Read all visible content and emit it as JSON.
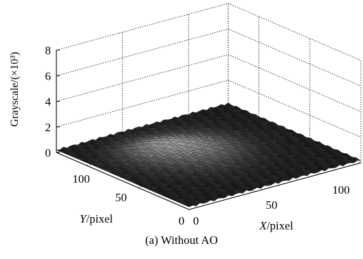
{
  "caption": "(a) Without AO",
  "chart_data": {
    "type": "surface3d",
    "title": "",
    "zlabel": "Grayscale/(×10³)",
    "xlabel_italic": "X",
    "xlabel_unit": "/pixel",
    "ylabel_italic": "Y",
    "ylabel_unit": "/pixel",
    "zlim": [
      0,
      8
    ],
    "z_ticks": [
      "0",
      "2",
      "4",
      "6",
      "8"
    ],
    "x_ticks": [
      "0",
      "50",
      "100"
    ],
    "y_ticks": [
      "0",
      "50",
      "100"
    ],
    "xlim": [
      0,
      130
    ],
    "ylim": [
      0,
      130
    ],
    "grid": true,
    "surface": {
      "baseline_level": 0.2,
      "peak_level": 1.0,
      "peak_location_x": 60,
      "peak_location_y": 75,
      "colormap": "gray"
    }
  }
}
